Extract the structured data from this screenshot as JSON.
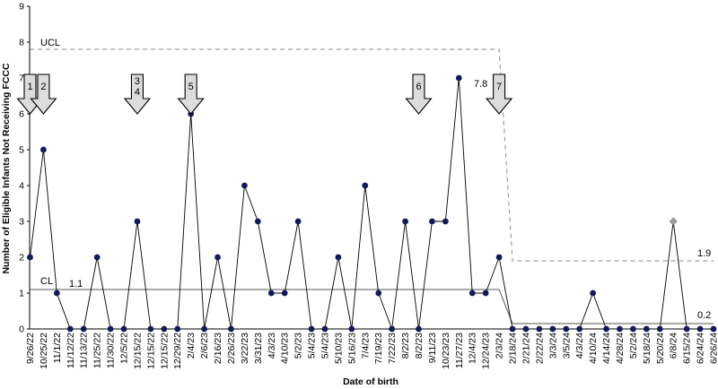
{
  "chart_data": {
    "type": "line",
    "xlabel": "Date of birth",
    "ylabel": "Number of Eligible Infants Not Receiving FCCC",
    "ylim": [
      0,
      9
    ],
    "yticks": [
      "0",
      "1",
      "2",
      "3",
      "4",
      "5",
      "6",
      "7",
      "8",
      "9"
    ],
    "grid": false,
    "colors": {
      "line": "#000000",
      "marker": "#14195a",
      "special_marker": "#a0a0a0",
      "limit_line": "#a0a0a0",
      "center_line": "#555555",
      "arrow_fill": "#dcdcdc"
    },
    "x": [
      "9/26/22",
      "10/25/22",
      "11/1/22",
      "11/12/22",
      "11/13/22",
      "11/25/22",
      "11/30/22",
      "12/5/22",
      "12/15/22",
      "12/15/22",
      "12/15/22",
      "12/29/22",
      "2/4/23",
      "2/6/23",
      "2/16/23",
      "2/26/23",
      "3/22/23",
      "3/31/23",
      "4/3/23",
      "4/10/23",
      "5/2/23",
      "5/4/23",
      "5/4/23",
      "5/10/23",
      "5/16/23",
      "7/4/23",
      "7/19/23",
      "7/22/23",
      "8/2/23",
      "8/2/23",
      "9/11/23",
      "10/23/23",
      "11/27/23",
      "12/4/23",
      "12/24/23",
      "2/3/24",
      "2/18/24",
      "2/21/24",
      "2/22/24",
      "3/3/24",
      "3/5/24",
      "4/3/24",
      "4/10/24",
      "4/14/24",
      "4/28/24",
      "5/2/24",
      "5/18/24",
      "5/20/24",
      "6/8/24",
      "6/15/24",
      "6/24/24",
      "6/26/24"
    ],
    "series": [
      {
        "values": [
          2,
          5,
          1,
          0,
          0,
          2,
          0,
          0,
          3,
          0,
          0,
          0,
          6,
          0,
          2,
          0,
          4,
          3,
          1,
          1,
          3,
          0,
          0,
          2,
          0,
          4,
          1,
          0,
          3,
          0,
          3,
          3,
          7,
          1,
          1,
          2,
          0,
          0,
          0,
          0,
          0,
          0,
          1,
          0,
          0,
          0,
          0,
          0,
          3,
          0,
          0,
          0
        ],
        "special_index": 48
      }
    ],
    "control_limits": {
      "ucl": {
        "label": "UCL",
        "segments": [
          {
            "from_index": 0,
            "to_index": 35,
            "value": 7.8,
            "label": "7.8"
          },
          {
            "from_index": 36,
            "to_index": 51,
            "value": 1.9,
            "label": "1.9"
          }
        ]
      },
      "cl": {
        "label": "CL",
        "segments": [
          {
            "from_index": 0,
            "to_index": 35,
            "value": 1.1,
            "label": "1.1"
          },
          {
            "from_index": 36,
            "to_index": 51,
            "value": 0.15,
            "label": "0.2"
          }
        ]
      }
    },
    "annotations": [
      {
        "label": "1",
        "index": 0
      },
      {
        "label": "2",
        "index": 1
      },
      {
        "label": "3\n4",
        "index": 8
      },
      {
        "label": "5",
        "index": 12
      },
      {
        "label": "6",
        "index": 29
      },
      {
        "label": "7",
        "index": 35
      }
    ]
  }
}
